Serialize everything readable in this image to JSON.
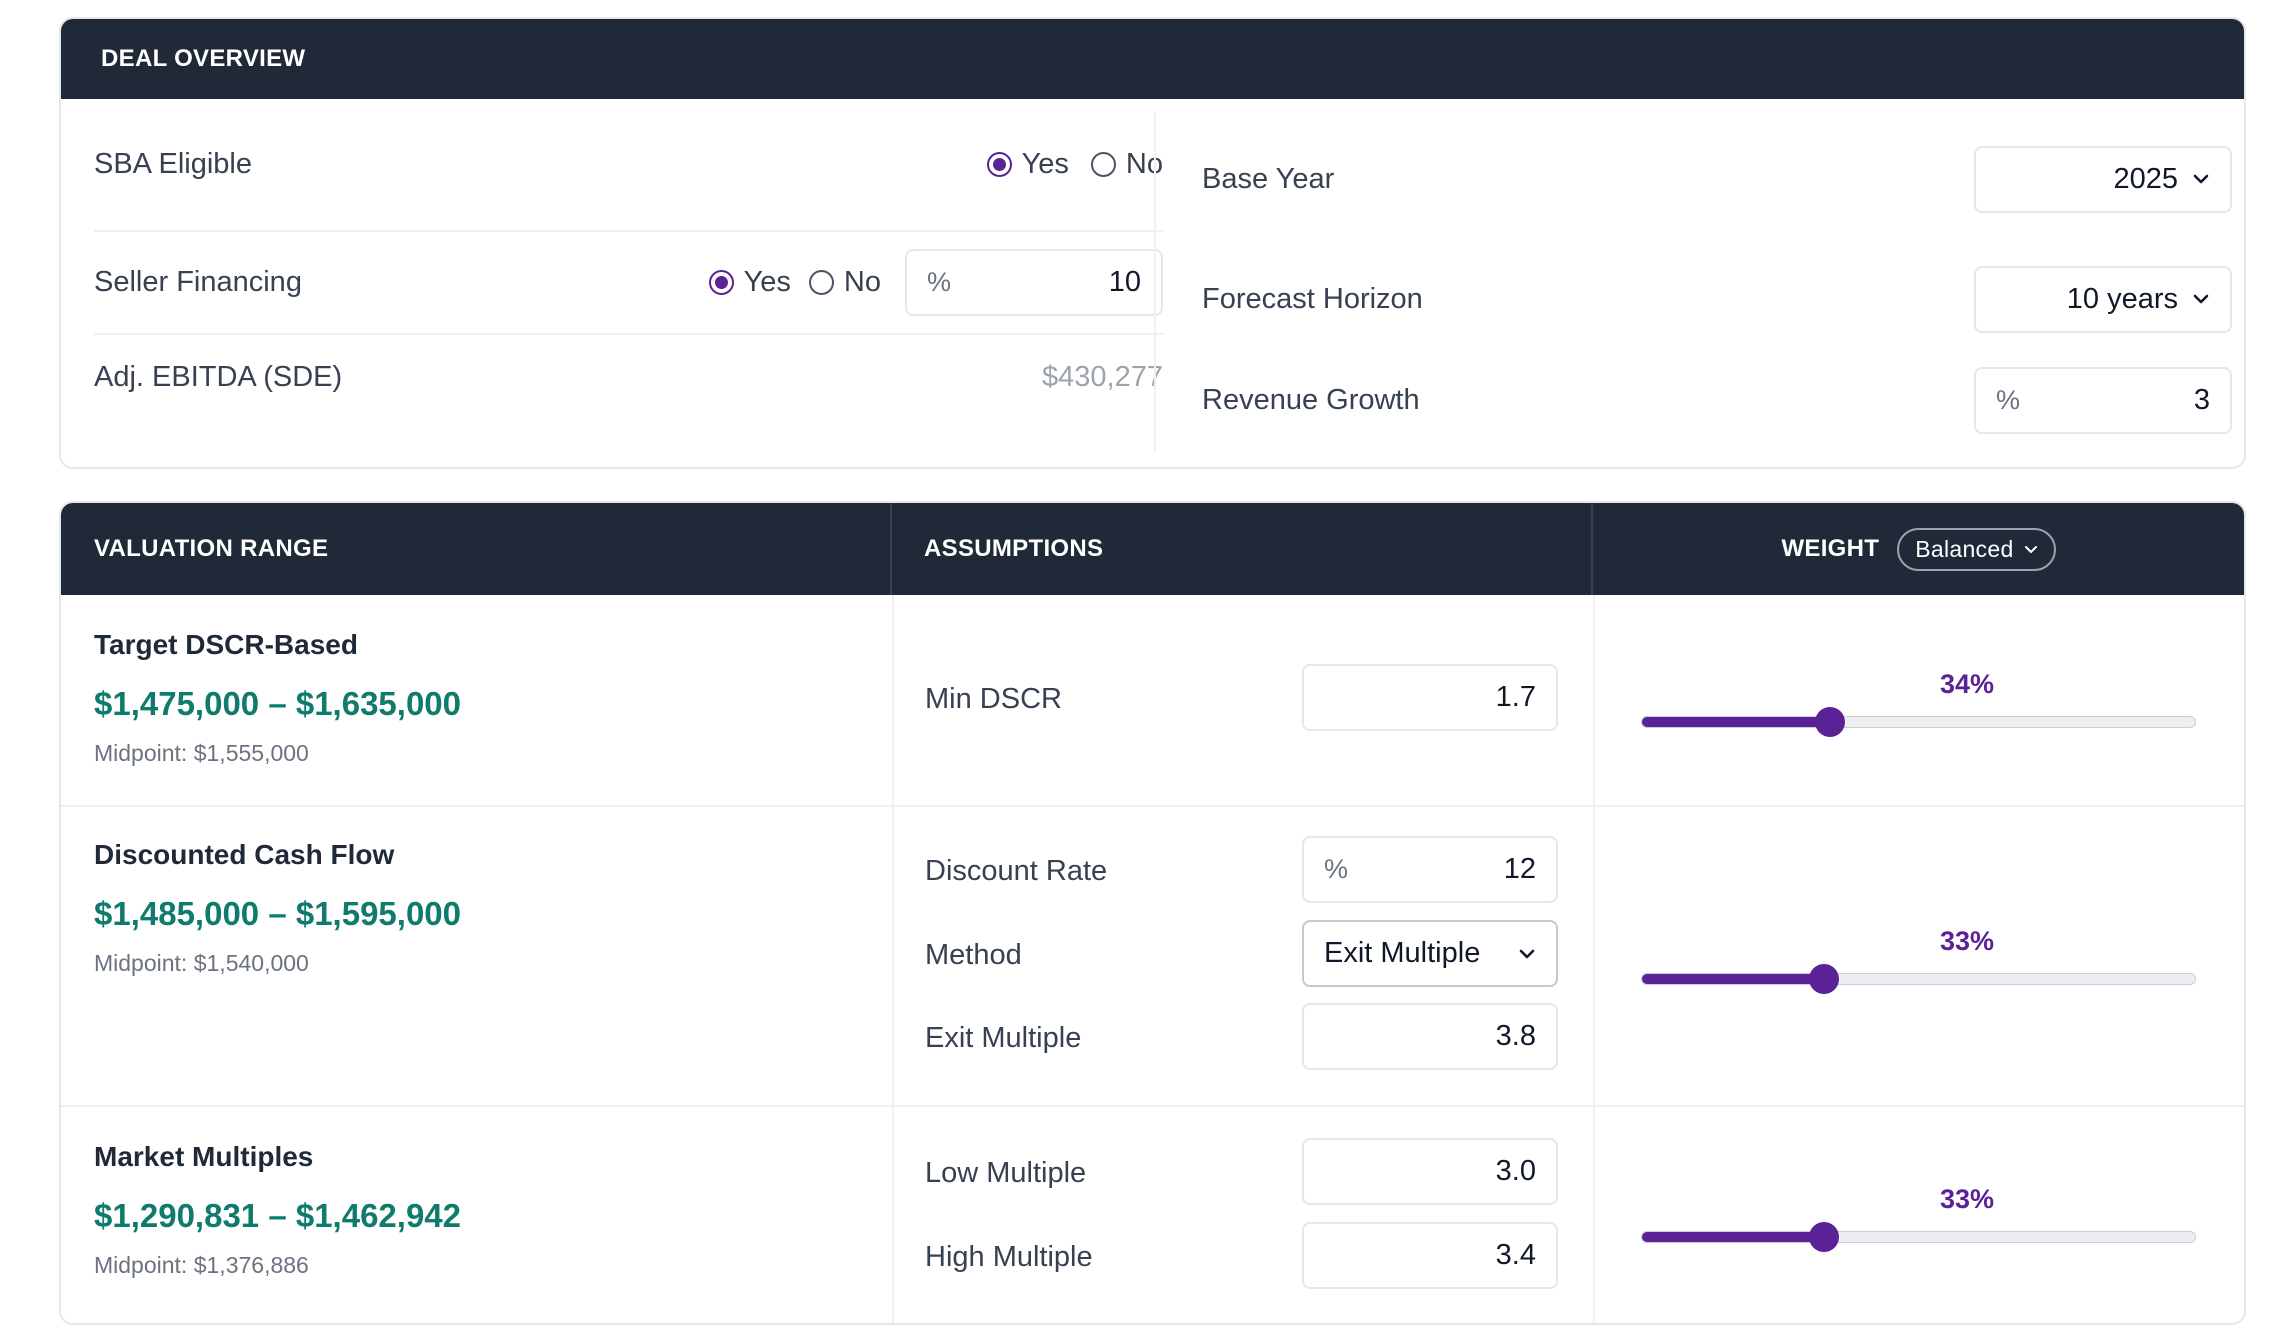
{
  "deal_overview": {
    "title": "DEAL OVERVIEW",
    "sba_eligible": {
      "label": "SBA Eligible",
      "yes": "Yes",
      "no": "No",
      "selected": "Yes"
    },
    "seller_financing": {
      "label": "Seller Financing",
      "yes": "Yes",
      "no": "No",
      "selected": "Yes",
      "unit": "%",
      "value": "10"
    },
    "adj_ebitda": {
      "label": "Adj. EBITDA (SDE)",
      "value": "$430,277"
    },
    "base_year": {
      "label": "Base Year",
      "value": "2025"
    },
    "forecast_horizon": {
      "label": "Forecast Horizon",
      "value": "10 years"
    },
    "revenue_growth": {
      "label": "Revenue Growth",
      "unit": "%",
      "value": "3"
    }
  },
  "valuation": {
    "headers": {
      "range": "VALUATION RANGE",
      "assumptions": "ASSUMPTIONS",
      "weight": "WEIGHT",
      "weight_mode": "Balanced"
    },
    "methods": [
      {
        "name": "Target DSCR-Based",
        "range": "$1,475,000 – $1,635,000",
        "midpoint": "Midpoint: $1,555,000",
        "assumptions": [
          {
            "label": "Min DSCR",
            "value": "1.7"
          }
        ],
        "weight_label": "34%",
        "weight": 0.34
      },
      {
        "name": "Discounted Cash Flow",
        "range": "$1,485,000 – $1,595,000",
        "midpoint": "Midpoint: $1,540,000",
        "assumptions": [
          {
            "label": "Discount Rate",
            "unit": "%",
            "value": "12"
          },
          {
            "label": "Method",
            "value": "Exit Multiple"
          },
          {
            "label": "Exit Multiple",
            "value": "3.8"
          }
        ],
        "weight_label": "33%",
        "weight": 0.33
      },
      {
        "name": "Market Multiples",
        "range": "$1,290,831 – $1,462,942",
        "midpoint": "Midpoint: $1,376,886",
        "assumptions": [
          {
            "label": "Low Multiple",
            "value": "3.0"
          },
          {
            "label": "High Multiple",
            "value": "3.4"
          }
        ],
        "weight_label": "33%",
        "weight": 0.33
      }
    ]
  },
  "colors": {
    "header_bg": "#1f2937",
    "accent_purple": "#5b2196",
    "range_green": "#0f7b6c"
  },
  "icons": {
    "select": "chevron-down-icon"
  }
}
